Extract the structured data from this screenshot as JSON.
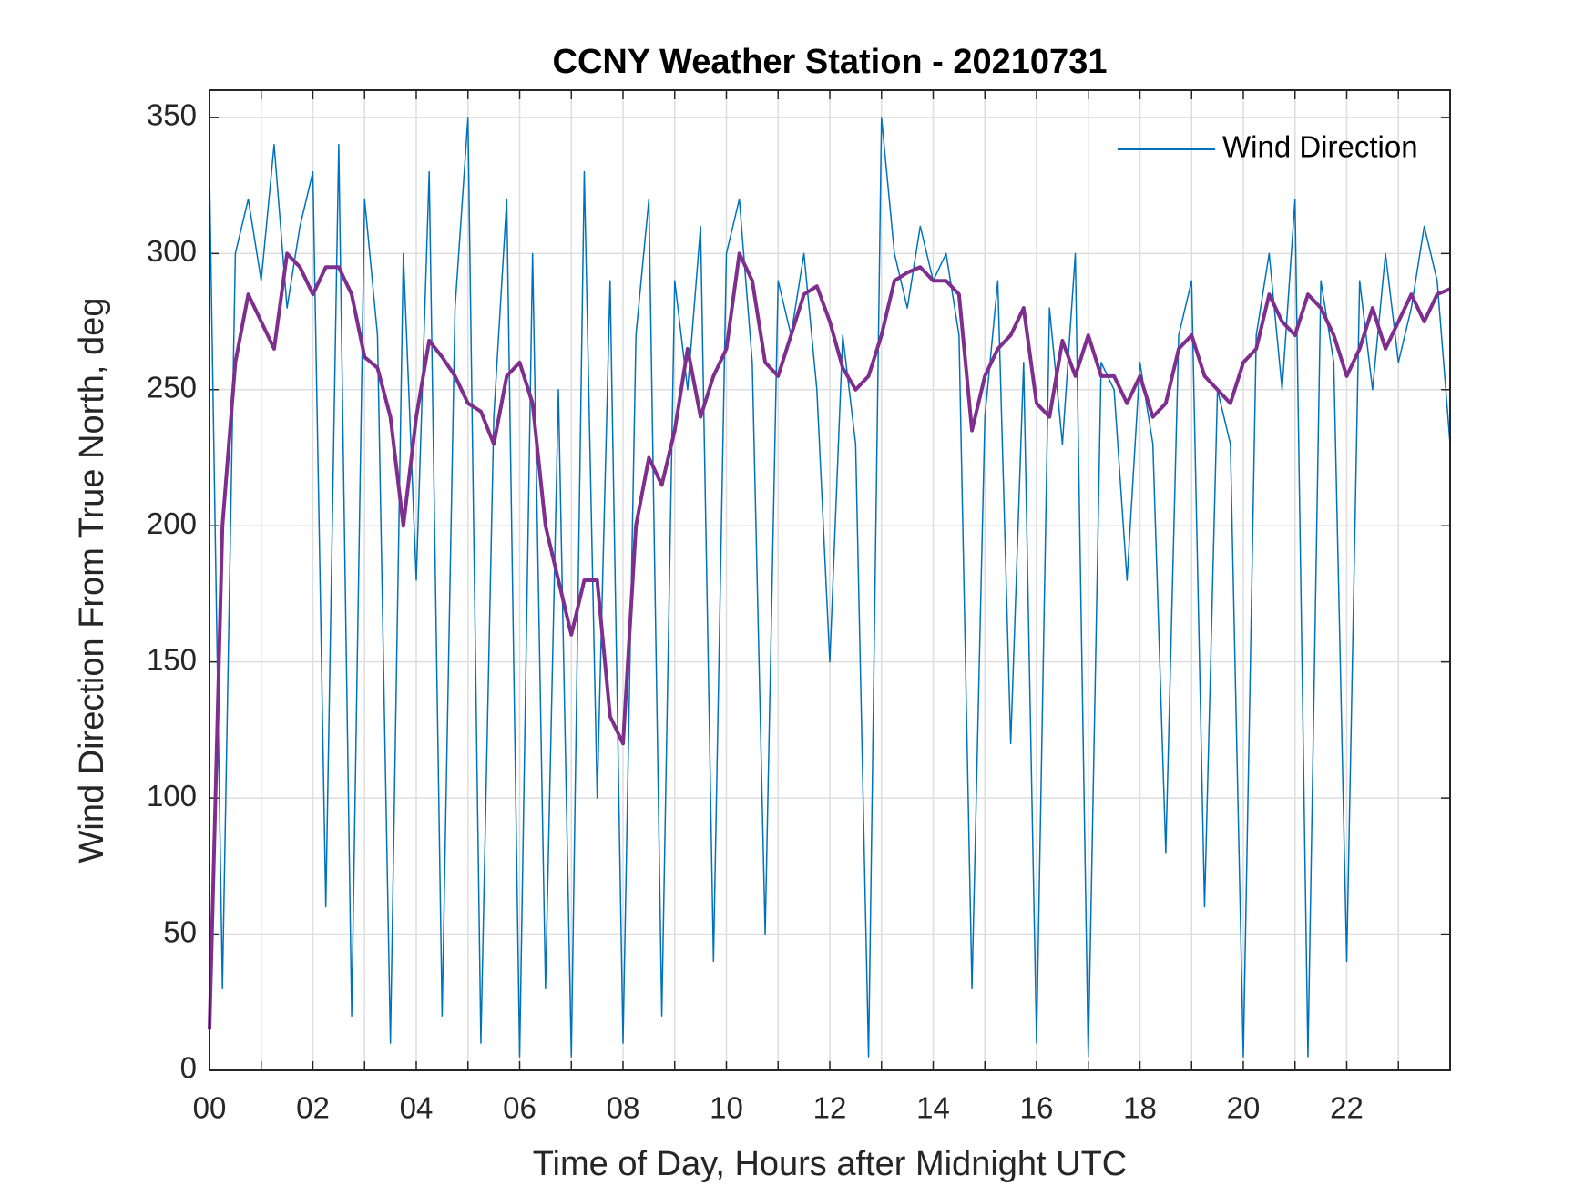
{
  "chart_data": {
    "type": "line",
    "title": "CCNY Weather Station - 20210731",
    "xlabel": "Time of Day, Hours after Midnight UTC",
    "ylabel": "Wind Direction From True North, deg",
    "x": [
      0,
      0.25,
      0.5,
      0.75,
      1,
      1.25,
      1.5,
      1.75,
      2,
      2.25,
      2.5,
      2.75,
      3,
      3.25,
      3.5,
      3.75,
      4,
      4.25,
      4.5,
      4.75,
      5,
      5.25,
      5.5,
      5.75,
      6,
      6.25,
      6.5,
      6.75,
      7,
      7.25,
      7.5,
      7.75,
      8,
      8.25,
      8.5,
      8.75,
      9,
      9.25,
      9.5,
      9.75,
      10,
      10.25,
      10.5,
      10.75,
      11,
      11.25,
      11.5,
      11.75,
      12,
      12.25,
      12.5,
      12.75,
      13,
      13.25,
      13.5,
      13.75,
      14,
      14.25,
      14.5,
      14.75,
      15,
      15.25,
      15.5,
      15.75,
      16,
      16.25,
      16.5,
      16.75,
      17,
      17.25,
      17.5,
      17.75,
      18,
      18.25,
      18.5,
      18.75,
      19,
      19.25,
      19.5,
      19.75,
      20,
      20.25,
      20.5,
      20.75,
      21,
      21.25,
      21.5,
      21.75,
      22,
      22.25,
      22.5,
      22.75,
      23,
      23.25,
      23.5,
      23.75,
      24
    ],
    "series": [
      {
        "name": "Wind Direction",
        "color": "#0072bd",
        "width": 1.5,
        "values": [
          330,
          30,
          300,
          320,
          290,
          340,
          280,
          310,
          330,
          60,
          340,
          20,
          320,
          270,
          10,
          300,
          180,
          330,
          20,
          280,
          350,
          10,
          240,
          320,
          5,
          300,
          30,
          250,
          5,
          330,
          100,
          290,
          10,
          270,
          320,
          20,
          290,
          250,
          310,
          40,
          300,
          320,
          260,
          50,
          290,
          270,
          300,
          250,
          150,
          270,
          230,
          5,
          350,
          300,
          280,
          310,
          290,
          300,
          270,
          30,
          240,
          290,
          120,
          260,
          10,
          280,
          230,
          300,
          5,
          260,
          250,
          180,
          260,
          230,
          80,
          270,
          290,
          60,
          250,
          230,
          5,
          270,
          300,
          250,
          320,
          5,
          290,
          260,
          40,
          290,
          250,
          300,
          260,
          280,
          310,
          290,
          230
        ]
      },
      {
        "color": "#7e2f8e",
        "width": 4,
        "values": [
          15,
          200,
          260,
          285,
          275,
          265,
          300,
          295,
          285,
          295,
          295,
          285,
          262,
          258,
          240,
          200,
          240,
          268,
          262,
          255,
          245,
          242,
          230,
          255,
          260,
          245,
          200,
          180,
          160,
          180,
          180,
          130,
          120,
          200,
          225,
          215,
          235,
          265,
          240,
          255,
          265,
          300,
          290,
          260,
          255,
          270,
          285,
          288,
          275,
          258,
          250,
          255,
          270,
          290,
          293,
          295,
          290,
          290,
          285,
          235,
          255,
          265,
          270,
          280,
          245,
          240,
          268,
          255,
          270,
          255,
          255,
          245,
          255,
          240,
          245,
          265,
          270,
          255,
          250,
          245,
          260,
          265,
          285,
          275,
          270,
          285,
          280,
          270,
          255,
          265,
          280,
          265,
          275,
          285,
          275,
          285,
          287
        ]
      }
    ],
    "xlim": [
      0,
      24
    ],
    "ylim": [
      0,
      360
    ],
    "xticks": [
      {
        "value": 0,
        "label": "00"
      },
      {
        "value": 2,
        "label": "02"
      },
      {
        "value": 4,
        "label": "04"
      },
      {
        "value": 6,
        "label": "06"
      },
      {
        "value": 8,
        "label": "08"
      },
      {
        "value": 10,
        "label": "10"
      },
      {
        "value": 12,
        "label": "12"
      },
      {
        "value": 14,
        "label": "14"
      },
      {
        "value": 16,
        "label": "16"
      },
      {
        "value": 18,
        "label": "18"
      },
      {
        "value": 20,
        "label": "20"
      },
      {
        "value": 22,
        "label": "22"
      }
    ],
    "xminorticks": [
      1,
      3,
      5,
      7,
      9,
      11,
      13,
      15,
      17,
      19,
      21,
      23
    ],
    "yticks": [
      0,
      50,
      100,
      150,
      200,
      250,
      300,
      350
    ],
    "grid": true,
    "legend": "northeast"
  }
}
